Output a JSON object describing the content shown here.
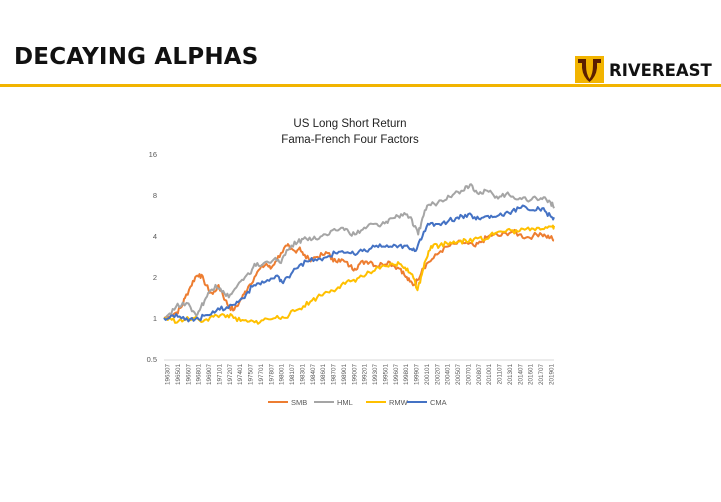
{
  "slide": {
    "title": "DECAYING ALPHAS",
    "brand": "RIVEREAST",
    "logo_icon": "rivereast-logo-icon",
    "accent_color": "#F2B400"
  },
  "chart_data": {
    "type": "line",
    "title": "US Long Short Return",
    "subtitle": "Fama-French Four Factors",
    "xlabel": "",
    "ylabel": "",
    "y_scale": "log2",
    "ylim": [
      0.5,
      16
    ],
    "y_ticks": [
      "16",
      "8",
      "4",
      "2",
      "1",
      "0.5"
    ],
    "y_tick_values": [
      16,
      8,
      4,
      2,
      1,
      0.5
    ],
    "x_tick_labels": [
      "196307",
      "196501",
      "196607",
      "196801",
      "196907",
      "197101",
      "197207",
      "197401",
      "197507",
      "197701",
      "197807",
      "198001",
      "198107",
      "198301",
      "198407",
      "198601",
      "198707",
      "198901",
      "199007",
      "199201",
      "199307",
      "199501",
      "199607",
      "199801",
      "199907",
      "200101",
      "200207",
      "200401",
      "200507",
      "200701",
      "200807",
      "201001",
      "201107",
      "201301",
      "201407",
      "201601",
      "201707",
      "201901"
    ],
    "grid": false,
    "legend_position": "bottom",
    "series": [
      {
        "name": "SMB",
        "color": "#ED7D31",
        "points": [
          [
            1963.5,
            1.0
          ],
          [
            1964.5,
            1.05
          ],
          [
            1965.3,
            1.1
          ],
          [
            1966.0,
            1.2
          ],
          [
            1966.5,
            1.4
          ],
          [
            1967.3,
            1.7
          ],
          [
            1968.0,
            2.0
          ],
          [
            1968.6,
            2.1
          ],
          [
            1969.2,
            1.9
          ],
          [
            1969.9,
            1.6
          ],
          [
            1970.5,
            1.5
          ],
          [
            1971.2,
            1.7
          ],
          [
            1971.7,
            1.6
          ],
          [
            1972.3,
            1.35
          ],
          [
            1972.9,
            1.2
          ],
          [
            1973.6,
            1.15
          ],
          [
            1974.3,
            1.3
          ],
          [
            1975.0,
            1.5
          ],
          [
            1975.6,
            1.7
          ],
          [
            1976.5,
            2.0
          ],
          [
            1977.3,
            2.3
          ],
          [
            1978.2,
            2.5
          ],
          [
            1978.8,
            2.3
          ],
          [
            1979.5,
            2.6
          ],
          [
            1980.3,
            3.0
          ],
          [
            1981.2,
            3.4
          ],
          [
            1981.6,
            3.2
          ],
          [
            1982.3,
            3.1
          ],
          [
            1983.0,
            3.3
          ],
          [
            1983.5,
            2.9
          ],
          [
            1984.3,
            2.7
          ],
          [
            1985.3,
            2.8
          ],
          [
            1986.3,
            2.9
          ],
          [
            1987.2,
            3.0
          ],
          [
            1987.8,
            2.6
          ],
          [
            1988.6,
            2.7
          ],
          [
            1989.4,
            2.6
          ],
          [
            1990.2,
            2.4
          ],
          [
            1990.9,
            2.3
          ],
          [
            1991.6,
            2.5
          ],
          [
            1992.4,
            2.6
          ],
          [
            1993.2,
            2.6
          ],
          [
            1994.0,
            2.4
          ],
          [
            1994.8,
            2.5
          ],
          [
            1995.7,
            2.6
          ],
          [
            1996.6,
            2.4
          ],
          [
            1997.5,
            2.3
          ],
          [
            1998.2,
            2.0
          ],
          [
            1998.8,
            1.85
          ],
          [
            1999.4,
            1.75
          ],
          [
            1999.9,
            1.9
          ],
          [
            2000.6,
            2.3
          ],
          [
            2001.4,
            2.55
          ],
          [
            2002.2,
            2.75
          ],
          [
            2003.2,
            3.1
          ],
          [
            2004.3,
            3.35
          ],
          [
            2005.3,
            3.5
          ],
          [
            2006.3,
            3.6
          ],
          [
            2007.2,
            3.5
          ],
          [
            2008.2,
            3.35
          ],
          [
            2009.0,
            3.6
          ],
          [
            2009.8,
            3.9
          ],
          [
            2010.8,
            4.1
          ],
          [
            2011.7,
            4.0
          ],
          [
            2012.6,
            4.2
          ],
          [
            2013.6,
            4.3
          ],
          [
            2014.5,
            4.1
          ],
          [
            2015.5,
            3.9
          ],
          [
            2016.5,
            4.0
          ],
          [
            2017.5,
            4.2
          ],
          [
            2018.3,
            4.0
          ],
          [
            2019.0,
            3.9
          ],
          [
            2019.5,
            3.7
          ]
        ]
      },
      {
        "name": "HML",
        "color": "#A5A5A5",
        "points": [
          [
            1963.5,
            1.0
          ],
          [
            1964.3,
            1.08
          ],
          [
            1965.2,
            1.2
          ],
          [
            1966.2,
            1.3
          ],
          [
            1967.3,
            1.2
          ],
          [
            1968.1,
            1.05
          ],
          [
            1968.8,
            1.2
          ],
          [
            1969.5,
            1.4
          ],
          [
            1970.2,
            1.6
          ],
          [
            1970.9,
            1.75
          ],
          [
            1971.6,
            1.65
          ],
          [
            1972.4,
            1.45
          ],
          [
            1973.2,
            1.5
          ],
          [
            1974.1,
            1.75
          ],
          [
            1974.9,
            1.9
          ],
          [
            1975.8,
            2.1
          ],
          [
            1976.5,
            2.5
          ],
          [
            1977.3,
            2.4
          ],
          [
            1978.3,
            2.6
          ],
          [
            1979.3,
            2.7
          ],
          [
            1980.1,
            2.55
          ],
          [
            1980.9,
            2.9
          ],
          [
            1981.8,
            3.4
          ],
          [
            1982.7,
            3.6
          ],
          [
            1983.5,
            3.8
          ],
          [
            1984.4,
            3.9
          ],
          [
            1985.3,
            3.8
          ],
          [
            1986.2,
            4.0
          ],
          [
            1987.2,
            4.1
          ],
          [
            1988.2,
            4.4
          ],
          [
            1989.2,
            4.6
          ],
          [
            1990.0,
            4.3
          ],
          [
            1990.9,
            4.1
          ],
          [
            1991.8,
            4.4
          ],
          [
            1992.7,
            4.7
          ],
          [
            1993.6,
            4.9
          ],
          [
            1994.5,
            4.7
          ],
          [
            1995.4,
            5.1
          ],
          [
            1996.2,
            5.4
          ],
          [
            1997.1,
            5.6
          ],
          [
            1998.0,
            5.9
          ],
          [
            1998.8,
            5.5
          ],
          [
            1999.4,
            4.7
          ],
          [
            2000.0,
            4.1
          ],
          [
            2000.6,
            5.4
          ],
          [
            2001.3,
            6.7
          ],
          [
            2002.3,
            6.9
          ],
          [
            2003.3,
            7.3
          ],
          [
            2004.3,
            7.9
          ],
          [
            2005.2,
            8.2
          ],
          [
            2006.2,
            8.6
          ],
          [
            2007.0,
            9.3
          ],
          [
            2007.6,
            9.6
          ],
          [
            2008.3,
            8.6
          ],
          [
            2009.1,
            8.2
          ],
          [
            2009.9,
            8.6
          ],
          [
            2010.8,
            8.0
          ],
          [
            2011.7,
            7.8
          ],
          [
            2012.6,
            8.1
          ],
          [
            2013.6,
            7.8
          ],
          [
            2014.6,
            7.6
          ],
          [
            2015.6,
            7.3
          ],
          [
            2016.5,
            7.7
          ],
          [
            2017.4,
            7.4
          ],
          [
            2018.2,
            7.7
          ],
          [
            2019.0,
            7.1
          ],
          [
            2019.5,
            6.4
          ]
        ]
      },
      {
        "name": "RMW",
        "color": "#FFC000",
        "points": [
          [
            1963.5,
            1.0
          ],
          [
            1964.6,
            0.97
          ],
          [
            1965.6,
            0.95
          ],
          [
            1966.6,
            0.97
          ],
          [
            1967.6,
            1.0
          ],
          [
            1968.6,
            0.96
          ],
          [
            1969.6,
            0.98
          ],
          [
            1970.6,
            1.02
          ],
          [
            1971.6,
            1.05
          ],
          [
            1972.6,
            1.05
          ],
          [
            1973.5,
            1.0
          ],
          [
            1974.5,
            0.95
          ],
          [
            1975.5,
            0.94
          ],
          [
            1976.5,
            0.93
          ],
          [
            1977.5,
            0.96
          ],
          [
            1978.5,
            0.98
          ],
          [
            1979.5,
            1.0
          ],
          [
            1980.5,
            1.02
          ],
          [
            1981.5,
            1.06
          ],
          [
            1982.5,
            1.14
          ],
          [
            1983.5,
            1.22
          ],
          [
            1984.5,
            1.32
          ],
          [
            1985.5,
            1.42
          ],
          [
            1986.5,
            1.52
          ],
          [
            1987.5,
            1.6
          ],
          [
            1988.5,
            1.68
          ],
          [
            1989.5,
            1.78
          ],
          [
            1990.5,
            1.88
          ],
          [
            1991.5,
            1.98
          ],
          [
            1992.5,
            2.08
          ],
          [
            1993.5,
            2.2
          ],
          [
            1994.5,
            2.3
          ],
          [
            1995.5,
            2.4
          ],
          [
            1996.5,
            2.46
          ],
          [
            1997.3,
            2.5
          ],
          [
            1998.1,
            2.35
          ],
          [
            1998.8,
            2.15
          ],
          [
            1999.5,
            1.9
          ],
          [
            1999.9,
            1.6
          ],
          [
            2000.4,
            2.0
          ],
          [
            2000.9,
            2.55
          ],
          [
            2001.5,
            3.1
          ],
          [
            2002.2,
            3.45
          ],
          [
            2003.1,
            3.4
          ],
          [
            2004.1,
            3.55
          ],
          [
            2005.1,
            3.65
          ],
          [
            2006.1,
            3.7
          ],
          [
            2007.0,
            3.6
          ],
          [
            2008.0,
            3.8
          ],
          [
            2009.0,
            3.95
          ],
          [
            2009.6,
            3.75
          ],
          [
            2010.4,
            4.1
          ],
          [
            2011.3,
            4.25
          ],
          [
            2012.3,
            4.3
          ],
          [
            2013.3,
            4.4
          ],
          [
            2014.3,
            4.3
          ],
          [
            2015.3,
            4.45
          ],
          [
            2016.3,
            4.55
          ],
          [
            2017.3,
            4.6
          ],
          [
            2018.3,
            4.65
          ],
          [
            2019.2,
            4.7
          ],
          [
            2019.5,
            4.75
          ]
        ]
      },
      {
        "name": "CMA",
        "color": "#4472C4",
        "points": [
          [
            1963.5,
            1.0
          ],
          [
            1964.5,
            1.04
          ],
          [
            1965.5,
            1.02
          ],
          [
            1966.5,
            0.97
          ],
          [
            1967.5,
            1.0
          ],
          [
            1968.5,
            0.98
          ],
          [
            1969.5,
            1.05
          ],
          [
            1970.5,
            1.12
          ],
          [
            1971.5,
            1.15
          ],
          [
            1972.5,
            1.2
          ],
          [
            1973.5,
            1.25
          ],
          [
            1974.4,
            1.35
          ],
          [
            1975.3,
            1.5
          ],
          [
            1976.2,
            1.7
          ],
          [
            1977.1,
            1.8
          ],
          [
            1978.1,
            1.85
          ],
          [
            1979.1,
            1.95
          ],
          [
            1980.0,
            2.0
          ],
          [
            1980.6,
            1.8
          ],
          [
            1981.3,
            2.0
          ],
          [
            1982.2,
            2.3
          ],
          [
            1983.2,
            2.5
          ],
          [
            1984.2,
            2.6
          ],
          [
            1985.2,
            2.7
          ],
          [
            1986.2,
            2.65
          ],
          [
            1987.1,
            2.85
          ],
          [
            1988.1,
            3.0
          ],
          [
            1989.1,
            3.1
          ],
          [
            1990.1,
            3.0
          ],
          [
            1991.0,
            2.9
          ],
          [
            1992.0,
            3.1
          ],
          [
            1993.0,
            3.2
          ],
          [
            1994.0,
            3.4
          ],
          [
            1995.0,
            3.35
          ],
          [
            1996.0,
            3.35
          ],
          [
            1997.0,
            3.3
          ],
          [
            1998.0,
            3.4
          ],
          [
            1998.8,
            3.2
          ],
          [
            1999.5,
            3.1
          ],
          [
            2000.1,
            3.6
          ],
          [
            2000.8,
            4.3
          ],
          [
            2001.6,
            4.85
          ],
          [
            2002.5,
            4.9
          ],
          [
            2003.5,
            5.0
          ],
          [
            2004.4,
            5.2
          ],
          [
            2005.4,
            5.4
          ],
          [
            2006.3,
            5.6
          ],
          [
            2007.2,
            5.8
          ],
          [
            2008.1,
            5.5
          ],
          [
            2008.9,
            5.3
          ],
          [
            2009.8,
            5.6
          ],
          [
            2010.7,
            5.5
          ],
          [
            2011.6,
            5.7
          ],
          [
            2012.5,
            5.9
          ],
          [
            2013.5,
            6.1
          ],
          [
            2014.5,
            6.4
          ],
          [
            2015.5,
            6.5
          ],
          [
            2016.5,
            6.2
          ],
          [
            2017.4,
            6.3
          ],
          [
            2018.2,
            6.1
          ],
          [
            2019.0,
            5.6
          ],
          [
            2019.5,
            5.5
          ]
        ]
      }
    ]
  }
}
